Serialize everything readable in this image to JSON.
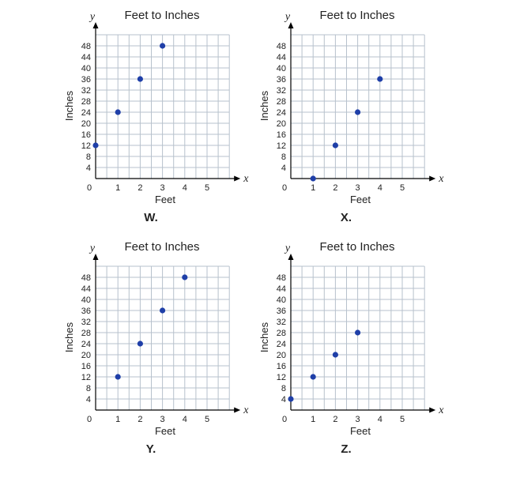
{
  "colors": {
    "background": "#ffffff",
    "grid": "#b7c1cc",
    "axis": "#000000",
    "point": "#1f3fa8"
  },
  "chart_data": [
    {
      "id": "W",
      "type": "scatter",
      "title": "Feet to Inches",
      "xlabel": "Feet",
      "ylabel": "Inches",
      "x_axis_var": "x",
      "y_axis_var": "y",
      "caption": "W.",
      "xlim": [
        0,
        6
      ],
      "ylim": [
        0,
        52
      ],
      "x_ticks": [
        1,
        2,
        3,
        4,
        5
      ],
      "y_ticks": [
        4,
        8,
        12,
        16,
        20,
        24,
        28,
        32,
        36,
        40,
        44,
        48
      ],
      "origin_label": "0",
      "grid": true,
      "points": [
        {
          "x": 0,
          "y": 12
        },
        {
          "x": 1,
          "y": 24
        },
        {
          "x": 2,
          "y": 36
        },
        {
          "x": 3,
          "y": 48
        }
      ]
    },
    {
      "id": "X",
      "type": "scatter",
      "title": "Feet to Inches",
      "xlabel": "Feet",
      "ylabel": "Inches",
      "x_axis_var": "x",
      "y_axis_var": "y",
      "caption": "X.",
      "xlim": [
        0,
        6
      ],
      "ylim": [
        0,
        52
      ],
      "x_ticks": [
        1,
        2,
        3,
        4,
        5
      ],
      "y_ticks": [
        4,
        8,
        12,
        16,
        20,
        24,
        28,
        32,
        36,
        40,
        44,
        48
      ],
      "origin_label": "0",
      "grid": true,
      "points": [
        {
          "x": 1,
          "y": 0
        },
        {
          "x": 2,
          "y": 12
        },
        {
          "x": 3,
          "y": 24
        },
        {
          "x": 4,
          "y": 36
        }
      ]
    },
    {
      "id": "Y",
      "type": "scatter",
      "title": "Feet to Inches",
      "xlabel": "Feet",
      "ylabel": "Inches",
      "x_axis_var": "x",
      "y_axis_var": "y",
      "caption": "Y.",
      "xlim": [
        0,
        6
      ],
      "ylim": [
        0,
        52
      ],
      "x_ticks": [
        1,
        2,
        3,
        4,
        5
      ],
      "y_ticks": [
        4,
        8,
        12,
        16,
        20,
        24,
        28,
        32,
        36,
        40,
        44,
        48
      ],
      "origin_label": "0",
      "grid": true,
      "points": [
        {
          "x": 1,
          "y": 12
        },
        {
          "x": 2,
          "y": 24
        },
        {
          "x": 3,
          "y": 36
        },
        {
          "x": 4,
          "y": 48
        }
      ]
    },
    {
      "id": "Z",
      "type": "scatter",
      "title": "Feet to Inches",
      "xlabel": "Feet",
      "ylabel": "Inches",
      "x_axis_var": "x",
      "y_axis_var": "y",
      "caption": "Z.",
      "xlim": [
        0,
        6
      ],
      "ylim": [
        0,
        52
      ],
      "x_ticks": [
        1,
        2,
        3,
        4,
        5
      ],
      "y_ticks": [
        4,
        8,
        12,
        16,
        20,
        24,
        28,
        32,
        36,
        40,
        44,
        48
      ],
      "origin_label": "0",
      "grid": true,
      "points": [
        {
          "x": 0,
          "y": 4
        },
        {
          "x": 1,
          "y": 12
        },
        {
          "x": 2,
          "y": 20
        },
        {
          "x": 3,
          "y": 28
        }
      ]
    }
  ]
}
